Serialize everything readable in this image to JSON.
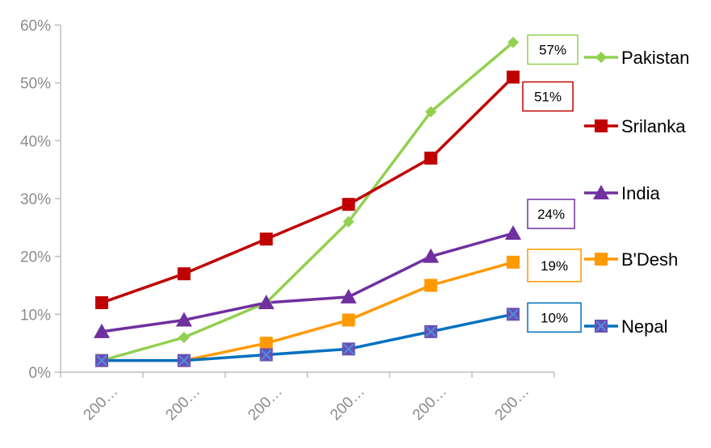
{
  "chart_data": {
    "type": "line",
    "title": "",
    "xlabel": "",
    "ylabel": "",
    "categories": [
      "200…",
      "200…",
      "200…",
      "200…",
      "200…",
      "200…"
    ],
    "ylim": [
      0,
      60
    ],
    "y_ticks": [
      "0%",
      "10%",
      "20%",
      "30%",
      "40%",
      "50%",
      "60%"
    ],
    "y_unit": "%",
    "grid": false,
    "legend_position": "right",
    "series": [
      {
        "name": "Pakistan",
        "color": "#92d050",
        "marker": "diamond",
        "values": [
          2,
          6,
          12,
          26,
          45,
          57
        ],
        "end_label": "57%"
      },
      {
        "name": "Srilanka",
        "color": "#c00000",
        "marker": "square",
        "values": [
          12,
          17,
          23,
          29,
          37,
          51
        ],
        "end_label": "51%"
      },
      {
        "name": "India",
        "color": "#7030a0",
        "marker": "triangle",
        "values": [
          7,
          9,
          12,
          13,
          20,
          24
        ],
        "end_label": "24%"
      },
      {
        "name": "B'Desh",
        "color": "#ff9900",
        "marker": "square",
        "values": [
          2,
          2,
          5,
          9,
          15,
          19
        ],
        "end_label": "19%"
      },
      {
        "name": "Nepal",
        "color": "#0070c0",
        "marker": "xsquare",
        "values": [
          2,
          2,
          3,
          4,
          7,
          10
        ],
        "end_label": "10%"
      }
    ]
  }
}
